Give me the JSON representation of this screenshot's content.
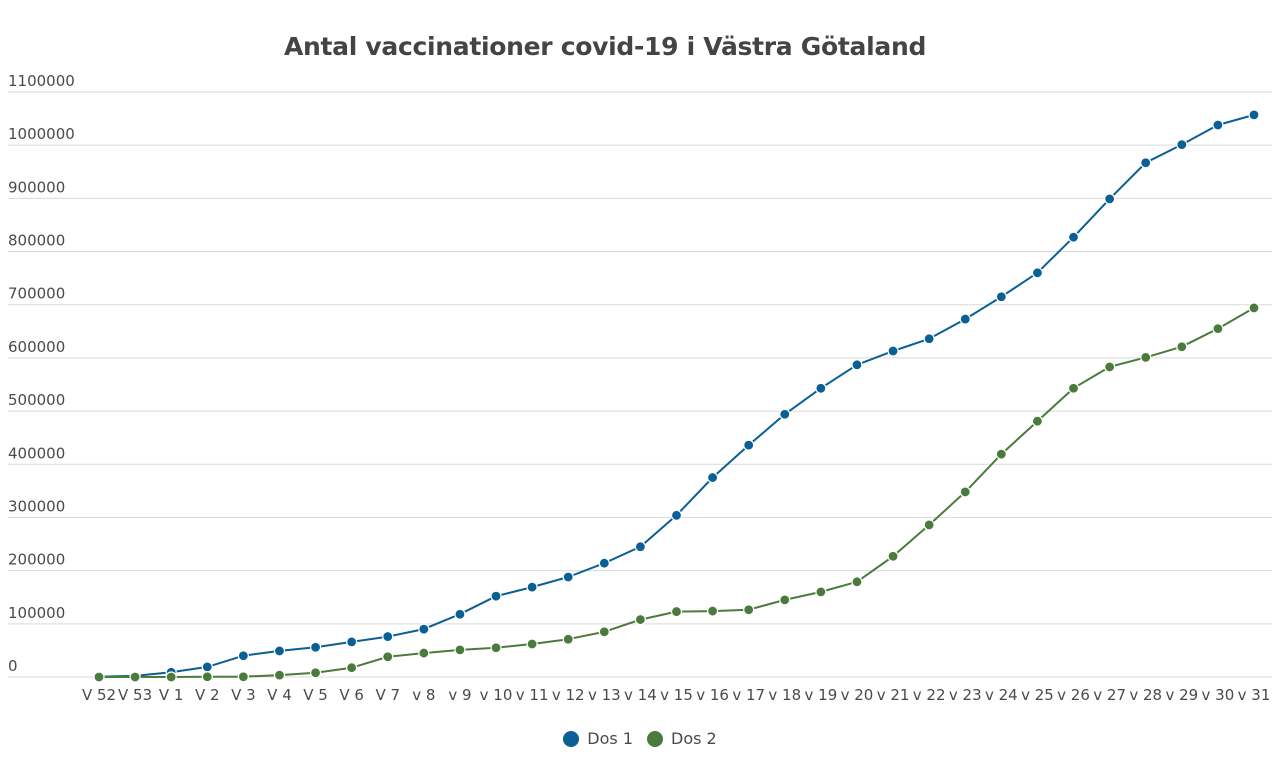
{
  "chart_data": {
    "type": "line",
    "title": "Antal vaccinationer covid-19 i Västra Götaland",
    "xlabel": "",
    "ylabel": "",
    "ylim": [
      0,
      1100000
    ],
    "yticks": [
      0,
      100000,
      200000,
      300000,
      400000,
      500000,
      600000,
      700000,
      800000,
      900000,
      1000000,
      1100000
    ],
    "ytick_labels": [
      "0",
      "100000",
      "200000",
      "300000",
      "400000",
      "500000",
      "600000",
      "700000",
      "800000",
      "900000",
      "1000000",
      "1100000"
    ],
    "grid": true,
    "legend_position": "bottom-center",
    "categories": [
      "V 52",
      "V 53",
      "V 1",
      "V 2",
      "V 3",
      "V 4",
      "V 5",
      "V 6",
      "V 7",
      "v 8",
      "v 9",
      "v 10",
      "v 11",
      "v 12",
      "v 13",
      "v 14",
      "v 15",
      "v 16",
      "v 17",
      "v 18",
      "v 19",
      "v 20",
      "v 21",
      "v 22",
      "v 23",
      "v 24",
      "v 25",
      "v 26",
      "v 27",
      "v 28",
      "v 29",
      "v 30",
      "v 31"
    ],
    "series": [
      {
        "name": "Dos 1",
        "color": "#0a5f94",
        "values": [
          500,
          2000,
          9000,
          19000,
          40000,
          49000,
          56000,
          66000,
          76000,
          90000,
          118000,
          152000,
          169000,
          188000,
          214000,
          245000,
          304000,
          375000,
          436000,
          494000,
          543000,
          587000,
          613000,
          636000,
          673000,
          715000,
          760000,
          827000,
          899000,
          967000,
          1001000,
          1038000,
          1057000
        ]
      },
      {
        "name": "Dos 2",
        "color": "#4b7b3c",
        "values": [
          0,
          0,
          0,
          500,
          500,
          3500,
          8000,
          17500,
          38000,
          45000,
          51000,
          55000,
          62000,
          71000,
          85000,
          108000,
          123000,
          124000,
          126500,
          145000,
          160000,
          179000,
          227000,
          286000,
          348000,
          419000,
          481000,
          543000,
          583000,
          601000,
          621000,
          655000,
          694000
        ]
      }
    ]
  },
  "legend": {
    "items": [
      {
        "label": "Dos 1",
        "color": "#0a5f94"
      },
      {
        "label": "Dos 2",
        "color": "#4b7b3c"
      }
    ]
  },
  "colors": {
    "gridline": "#d9d9d9",
    "axis_text": "#4a4a4a",
    "title_text": "#444444"
  }
}
